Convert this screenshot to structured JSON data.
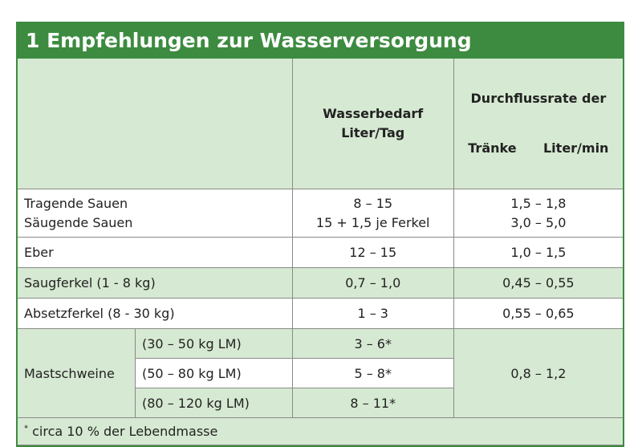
{
  "title": "1 Empfehlungen zur Wasserversorgung",
  "header": {
    "col2": [
      "Wasserbedarf",
      "Liter/Tag"
    ],
    "col3": [
      "Durchflussrate der",
      "Tränke      Liter/min"
    ]
  },
  "rows": [
    {
      "label": [
        "Tragende Sauen",
        "Säugende Sauen"
      ],
      "bedarf": [
        "8 – 15",
        "15 + 1,5 je Ferkel"
      ],
      "rate": [
        "1,5 – 1,8",
        "3,0 – 5,0"
      ]
    },
    {
      "label": [
        "Eber"
      ],
      "bedarf": [
        "12 – 15"
      ],
      "rate": [
        "1,0 – 1,5"
      ]
    },
    {
      "label": [
        "Saugferkel (1 - 8 kg)"
      ],
      "bedarf": [
        "0,7 – 1,0"
      ],
      "rate": [
        "0,45 – 0,55"
      ]
    },
    {
      "label": [
        "Absetzferkel (8 - 30 kg)"
      ],
      "bedarf": [
        "1 – 3"
      ],
      "rate": [
        "0,55 – 0,65"
      ]
    }
  ],
  "mast": {
    "label": "Mastschweine",
    "rate": "0,8 – 1,2",
    "sub": [
      {
        "range": "(30 – 50 kg LM)",
        "bedarf": "3 – 6*"
      },
      {
        "range": "(50 – 80 kg LM)",
        "bedarf": "5 – 8*"
      },
      {
        "range": "(80 – 120 kg LM)",
        "bedarf": "8 – 11*"
      }
    ]
  },
  "footnote": {
    "marker": "*",
    "text": "circa 10 % der Lebendmasse"
  }
}
